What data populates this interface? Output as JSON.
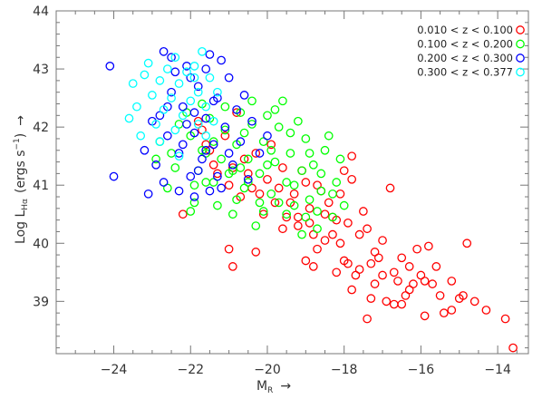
{
  "chart_data": {
    "type": "scatter",
    "xlabel": "M_R",
    "xlabel_main": "M",
    "xlabel_sub": "R",
    "ylabel": "Log L_Hα (ergs s⁻¹)",
    "ylabel_main": "Log L",
    "ylabel_sub": "Hα",
    "ylabel_units": "(ergs s",
    "ylabel_units_sup": "−1",
    "ylabel_units_close": ")",
    "arrow": "→",
    "xlim": [
      -25.5,
      -13.2
    ],
    "ylim": [
      38.1,
      44.0
    ],
    "xticks": [
      -24,
      -22,
      -20,
      -18,
      -16,
      -14
    ],
    "yticks": [
      39,
      40,
      41,
      42,
      43,
      44
    ],
    "legend_position": "top-right",
    "marker": "open-circle",
    "series": [
      {
        "name": "0.010 < z < 0.100",
        "color": "#ff0000",
        "points": [
          [
            -13.6,
            38.2
          ],
          [
            -13.8,
            38.7
          ],
          [
            -14.6,
            39.0
          ],
          [
            -14.8,
            40.0
          ],
          [
            -14.9,
            39.1
          ],
          [
            -15.2,
            38.85
          ],
          [
            -15.4,
            38.8
          ],
          [
            -15.5,
            39.1
          ],
          [
            -15.7,
            39.3
          ],
          [
            -15.9,
            39.35
          ],
          [
            -15.9,
            38.75
          ],
          [
            -16.1,
            39.9
          ],
          [
            -16.0,
            39.45
          ],
          [
            -16.3,
            39.6
          ],
          [
            -16.4,
            39.1
          ],
          [
            -16.6,
            39.35
          ],
          [
            -16.7,
            38.95
          ],
          [
            -16.9,
            39.0
          ],
          [
            -17.0,
            39.45
          ],
          [
            -17.2,
            39.3
          ],
          [
            -17.3,
            39.05
          ],
          [
            -17.4,
            38.7
          ],
          [
            -17.6,
            39.55
          ],
          [
            -17.8,
            39.2
          ],
          [
            -17.9,
            39.65
          ],
          [
            -16.5,
            38.95
          ],
          [
            -17.0,
            40.05
          ],
          [
            -17.4,
            40.25
          ],
          [
            -18.0,
            39.7
          ],
          [
            -18.1,
            40.0
          ],
          [
            -18.2,
            40.4
          ],
          [
            -18.3,
            40.15
          ],
          [
            -18.4,
            40.7
          ],
          [
            -18.0,
            41.25
          ],
          [
            -17.8,
            41.5
          ],
          [
            -17.8,
            41.1
          ],
          [
            -16.8,
            40.95
          ],
          [
            -17.5,
            40.55
          ],
          [
            -18.5,
            40.5
          ],
          [
            -18.6,
            40.9
          ],
          [
            -18.8,
            40.15
          ],
          [
            -18.9,
            40.6
          ],
          [
            -19.0,
            41.05
          ],
          [
            -19.2,
            40.3
          ],
          [
            -19.3,
            40.85
          ],
          [
            -19.5,
            40.45
          ],
          [
            -19.6,
            41.3
          ],
          [
            -19.8,
            40.7
          ],
          [
            -20.0,
            41.1
          ],
          [
            -20.2,
            40.85
          ],
          [
            -20.3,
            41.55
          ],
          [
            -20.5,
            41.2
          ],
          [
            -20.7,
            40.8
          ],
          [
            -20.9,
            41.3
          ],
          [
            -21.1,
            41.85
          ],
          [
            -21.3,
            41.2
          ],
          [
            -21.5,
            41.6
          ],
          [
            -21.7,
            41.95
          ],
          [
            -21.8,
            42.1
          ],
          [
            -21.4,
            41.35
          ],
          [
            -20.9,
            39.6
          ],
          [
            -20.3,
            39.85
          ],
          [
            -21.0,
            39.9
          ],
          [
            -19.6,
            40.25
          ],
          [
            -19.0,
            39.7
          ],
          [
            -18.7,
            39.9
          ],
          [
            -18.2,
            39.5
          ],
          [
            -17.7,
            39.45
          ],
          [
            -16.2,
            39.3
          ],
          [
            -15.8,
            39.95
          ],
          [
            -16.5,
            39.75
          ],
          [
            -17.1,
            39.75
          ],
          [
            -17.9,
            40.35
          ],
          [
            -18.3,
            40.45
          ],
          [
            -18.9,
            40.35
          ],
          [
            -19.4,
            40.7
          ],
          [
            -20.1,
            40.5
          ],
          [
            -20.6,
            41.45
          ],
          [
            -19.9,
            41.7
          ],
          [
            -19.1,
            41.25
          ],
          [
            -18.7,
            41.0
          ],
          [
            -18.1,
            40.85
          ],
          [
            -17.6,
            40.15
          ],
          [
            -17.2,
            39.85
          ],
          [
            -16.7,
            39.5
          ],
          [
            -15.6,
            39.6
          ],
          [
            -15.2,
            39.35
          ],
          [
            -14.3,
            38.85
          ],
          [
            -18.5,
            40.05
          ],
          [
            -19.2,
            40.45
          ],
          [
            -19.7,
            40.95
          ],
          [
            -20.4,
            40.95
          ],
          [
            -21.6,
            41.7
          ],
          [
            -20.8,
            42.25
          ],
          [
            -22.2,
            40.5
          ],
          [
            -21.0,
            41.0
          ],
          [
            -18.8,
            39.6
          ],
          [
            -17.3,
            39.65
          ],
          [
            -16.3,
            39.2
          ],
          [
            -15.0,
            39.05
          ]
        ]
      },
      {
        "name": "0.100 < z < 0.200",
        "color": "#00ff00",
        "points": [
          [
            -22.8,
            41.75
          ],
          [
            -22.5,
            41.55
          ],
          [
            -22.3,
            42.05
          ],
          [
            -22.0,
            41.85
          ],
          [
            -21.8,
            41.25
          ],
          [
            -21.7,
            41.6
          ],
          [
            -21.5,
            42.15
          ],
          [
            -21.4,
            41.05
          ],
          [
            -21.2,
            41.45
          ],
          [
            -21.1,
            41.95
          ],
          [
            -20.9,
            41.25
          ],
          [
            -20.8,
            41.7
          ],
          [
            -20.6,
            40.95
          ],
          [
            -20.5,
            41.45
          ],
          [
            -20.4,
            42.05
          ],
          [
            -20.2,
            41.2
          ],
          [
            -20.1,
            41.75
          ],
          [
            -19.9,
            40.85
          ],
          [
            -19.8,
            41.4
          ],
          [
            -19.7,
            42.0
          ],
          [
            -19.5,
            41.05
          ],
          [
            -19.4,
            41.55
          ],
          [
            -19.3,
            40.65
          ],
          [
            -19.1,
            41.25
          ],
          [
            -19.0,
            41.8
          ],
          [
            -18.9,
            40.75
          ],
          [
            -18.8,
            41.35
          ],
          [
            -18.6,
            40.9
          ],
          [
            -18.5,
            41.6
          ],
          [
            -18.3,
            40.45
          ],
          [
            -18.2,
            41.05
          ],
          [
            -18.0,
            40.65
          ],
          [
            -19.6,
            42.45
          ],
          [
            -19.8,
            42.3
          ],
          [
            -20.4,
            42.45
          ],
          [
            -20.7,
            42.25
          ],
          [
            -21.3,
            40.65
          ],
          [
            -22.0,
            40.55
          ],
          [
            -21.9,
            40.7
          ],
          [
            -22.6,
            40.95
          ],
          [
            -20.3,
            40.3
          ],
          [
            -19.1,
            40.15
          ],
          [
            -18.7,
            40.25
          ],
          [
            -19.5,
            40.5
          ],
          [
            -20.1,
            40.55
          ],
          [
            -21.6,
            41.55
          ],
          [
            -21.9,
            41.0
          ],
          [
            -20.6,
            41.9
          ],
          [
            -20.0,
            42.2
          ],
          [
            -19.2,
            42.1
          ],
          [
            -18.4,
            41.85
          ],
          [
            -18.1,
            41.45
          ],
          [
            -21.0,
            41.2
          ],
          [
            -20.5,
            41.05
          ],
          [
            -19.9,
            41.6
          ],
          [
            -19.3,
            41.0
          ],
          [
            -18.7,
            40.55
          ],
          [
            -21.4,
            41.75
          ],
          [
            -22.1,
            42.25
          ],
          [
            -22.4,
            41.3
          ],
          [
            -20.8,
            40.75
          ],
          [
            -20.2,
            40.7
          ],
          [
            -19.7,
            40.7
          ],
          [
            -18.9,
            41.55
          ],
          [
            -18.3,
            40.85
          ],
          [
            -21.1,
            42.35
          ],
          [
            -21.6,
            41.05
          ],
          [
            -20.0,
            41.35
          ],
          [
            -19.4,
            41.9
          ],
          [
            -18.6,
            41.2
          ],
          [
            -22.9,
            41.45
          ],
          [
            -21.7,
            42.4
          ],
          [
            -20.9,
            40.5
          ],
          [
            -19.0,
            40.45
          ],
          [
            -20.7,
            41.3
          ]
        ]
      },
      {
        "name": "0.200 < z < 0.300",
        "color": "#0000ff",
        "points": [
          [
            -24.1,
            43.05
          ],
          [
            -24.0,
            41.15
          ],
          [
            -23.1,
            40.85
          ],
          [
            -22.9,
            41.35
          ],
          [
            -22.8,
            42.2
          ],
          [
            -22.7,
            43.3
          ],
          [
            -22.6,
            41.85
          ],
          [
            -22.5,
            42.6
          ],
          [
            -22.4,
            42.95
          ],
          [
            -22.3,
            41.55
          ],
          [
            -22.2,
            42.35
          ],
          [
            -22.1,
            43.05
          ],
          [
            -22.0,
            41.15
          ],
          [
            -21.9,
            41.9
          ],
          [
            -21.8,
            42.7
          ],
          [
            -21.7,
            41.45
          ],
          [
            -21.6,
            42.15
          ],
          [
            -21.5,
            43.25
          ],
          [
            -21.4,
            41.7
          ],
          [
            -21.3,
            42.5
          ],
          [
            -21.2,
            40.95
          ],
          [
            -21.1,
            42.0
          ],
          [
            -21.0,
            42.85
          ],
          [
            -20.9,
            41.35
          ],
          [
            -20.8,
            42.3
          ],
          [
            -20.7,
            41.75
          ],
          [
            -20.5,
            41.1
          ],
          [
            -20.4,
            42.1
          ],
          [
            -20.2,
            41.55
          ],
          [
            -20.0,
            41.85
          ],
          [
            -21.2,
            43.15
          ],
          [
            -22.5,
            43.2
          ],
          [
            -22.0,
            42.85
          ],
          [
            -21.6,
            43.0
          ],
          [
            -23.0,
            42.1
          ],
          [
            -23.2,
            41.6
          ],
          [
            -22.7,
            41.05
          ],
          [
            -21.9,
            40.8
          ],
          [
            -21.5,
            40.9
          ],
          [
            -22.2,
            41.7
          ],
          [
            -21.9,
            42.25
          ],
          [
            -21.4,
            42.45
          ],
          [
            -21.0,
            41.55
          ],
          [
            -22.6,
            42.35
          ],
          [
            -21.8,
            41.25
          ],
          [
            -22.3,
            40.9
          ],
          [
            -20.6,
            42.55
          ],
          [
            -21.3,
            41.15
          ],
          [
            -22.1,
            42.05
          ],
          [
            -21.6,
            41.6
          ]
        ]
      },
      {
        "name": "0.300 < z < 0.377",
        "color": "#00ffff",
        "points": [
          [
            -23.5,
            42.75
          ],
          [
            -23.4,
            42.35
          ],
          [
            -23.3,
            41.85
          ],
          [
            -23.2,
            42.9
          ],
          [
            -23.1,
            43.1
          ],
          [
            -23.0,
            42.55
          ],
          [
            -22.9,
            42.05
          ],
          [
            -22.8,
            42.8
          ],
          [
            -22.7,
            42.3
          ],
          [
            -22.6,
            43.0
          ],
          [
            -22.5,
            42.5
          ],
          [
            -22.4,
            41.95
          ],
          [
            -22.3,
            42.75
          ],
          [
            -22.2,
            42.2
          ],
          [
            -22.1,
            42.95
          ],
          [
            -22.0,
            42.45
          ],
          [
            -21.9,
            43.05
          ],
          [
            -21.8,
            42.6
          ],
          [
            -21.7,
            43.3
          ],
          [
            -21.6,
            42.35
          ],
          [
            -21.5,
            42.85
          ],
          [
            -21.4,
            42.1
          ],
          [
            -23.6,
            42.15
          ],
          [
            -22.4,
            43.2
          ],
          [
            -21.9,
            42.85
          ],
          [
            -22.8,
            41.75
          ],
          [
            -22.3,
            41.5
          ],
          [
            -21.8,
            42.05
          ],
          [
            -21.3,
            42.6
          ],
          [
            -21.6,
            41.85
          ]
        ]
      }
    ]
  }
}
